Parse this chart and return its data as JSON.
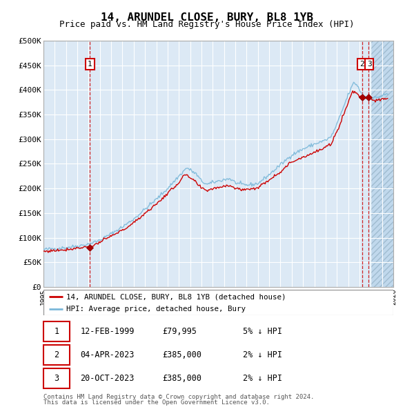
{
  "title": "14, ARUNDEL CLOSE, BURY, BL8 1YB",
  "subtitle": "Price paid vs. HM Land Registry's House Price Index (HPI)",
  "bg_color": "#dce9f5",
  "grid_color": "#ffffff",
  "red_line_color": "#cc0000",
  "blue_line_color": "#7ab8d9",
  "dashed_line_color": "#cc0000",
  "marker_color": "#aa0000",
  "ylim": [
    0,
    500000
  ],
  "yticks": [
    0,
    50000,
    100000,
    150000,
    200000,
    250000,
    300000,
    350000,
    400000,
    450000,
    500000
  ],
  "ytick_labels": [
    "£0",
    "£50K",
    "£100K",
    "£150K",
    "£200K",
    "£250K",
    "£300K",
    "£350K",
    "£400K",
    "£450K",
    "£500K"
  ],
  "xmin_year": 1995.0,
  "xmax_year": 2026.0,
  "xticks": [
    1995,
    1996,
    1997,
    1998,
    1999,
    2000,
    2001,
    2002,
    2003,
    2004,
    2005,
    2006,
    2007,
    2008,
    2009,
    2010,
    2011,
    2012,
    2013,
    2014,
    2015,
    2016,
    2017,
    2018,
    2019,
    2020,
    2021,
    2022,
    2023,
    2024,
    2025,
    2026
  ],
  "purchase_dates": [
    1999.12,
    2023.27,
    2023.8
  ],
  "purchase_prices": [
    79995,
    385000,
    385000
  ],
  "hatch_start": 2024.0,
  "footnote_line1": "Contains HM Land Registry data © Crown copyright and database right 2024.",
  "footnote_line2": "This data is licensed under the Open Government Licence v3.0.",
  "legend_entries": [
    "14, ARUNDEL CLOSE, BURY, BL8 1YB (detached house)",
    "HPI: Average price, detached house, Bury"
  ],
  "table_rows": [
    [
      "1",
      "12-FEB-1999",
      "£79,995",
      "5% ↓ HPI"
    ],
    [
      "2",
      "04-APR-2023",
      "£385,000",
      "2% ↓ HPI"
    ],
    [
      "3",
      "20-OCT-2023",
      "£385,000",
      "2% ↓ HPI"
    ]
  ]
}
